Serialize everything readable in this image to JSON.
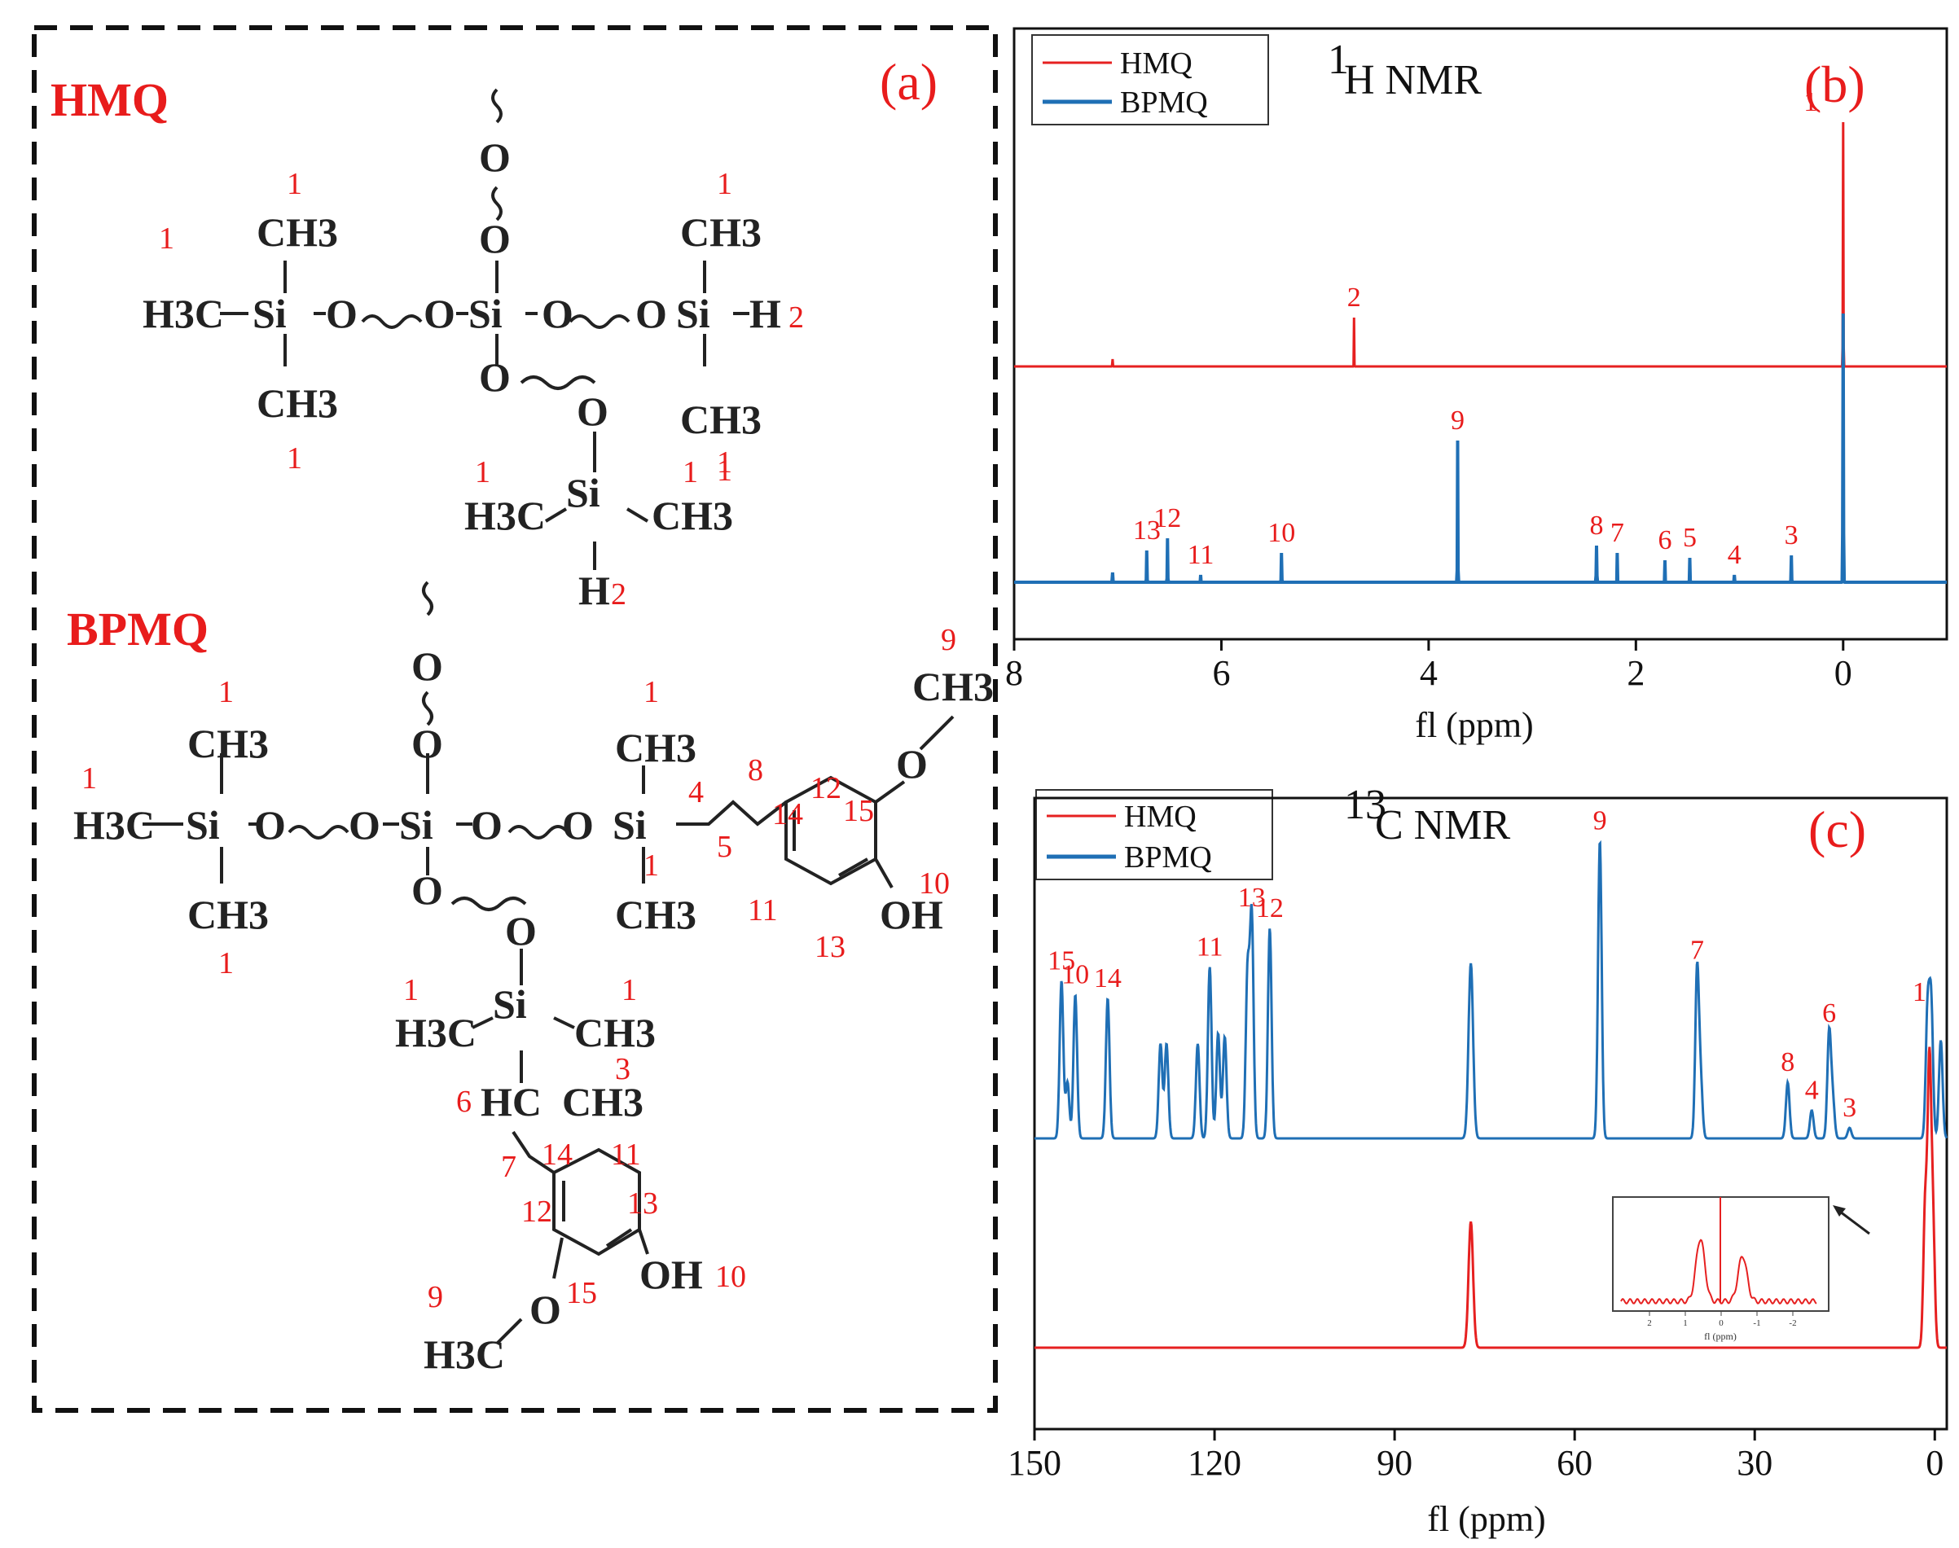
{
  "panel_a": {
    "tag": "(a)",
    "hmq_title": "HMQ",
    "bpmq_title": "BPMQ",
    "hmq_structure": {
      "ch3": "CH3",
      "h3c": "H3C",
      "si": "Si",
      "o": "O",
      "h": "H",
      "labels": [
        "1",
        "1",
        "1",
        "2",
        "1",
        "1",
        "1",
        "1",
        "1",
        "2"
      ]
    },
    "bpmq_structure": {
      "ch3": "CH3",
      "h3c": "H3C",
      "si": "Si",
      "o": "O",
      "oh": "OH",
      "hc": "HC",
      "labels": [
        "1",
        "1",
        "1",
        "1",
        "1",
        "4",
        "8",
        "14",
        "12",
        "15",
        "9",
        "5",
        "11",
        "13",
        "10",
        "1",
        "1",
        "3",
        "6",
        "7",
        "14",
        "11",
        "13",
        "12",
        "10",
        "9",
        "15"
      ]
    }
  },
  "chart_data": [
    {
      "type": "line",
      "panel": "(b)",
      "title": "1H NMR",
      "title_sup": "1",
      "title_main": "H NMR",
      "xlabel": "fl (ppm)",
      "ylabel": "",
      "xlim": [
        8,
        -1
      ],
      "x_reversed": true,
      "xticks": [
        8,
        6,
        4,
        2,
        0
      ],
      "grid": false,
      "legend_position": "top-left",
      "legend": [
        "HMQ",
        "BPMQ"
      ],
      "series": [
        {
          "name": "HMQ",
          "color": "#e62020",
          "baseline": 0.42,
          "peaks": [
            {
              "x": 7.05,
              "h": 0.03,
              "w": 0.025,
              "label": ""
            },
            {
              "x": 4.72,
              "h": 0.2,
              "w": 0.02,
              "label": "2"
            },
            {
              "x": 0.0,
              "h": 1.0,
              "w": 0.025,
              "label": "1"
            }
          ]
        },
        {
          "name": "BPMQ",
          "color": "#1f6fb5",
          "baseline": 0.0,
          "peaks": [
            {
              "x": 7.05,
              "h": 0.04,
              "w": 0.03,
              "label": ""
            },
            {
              "x": 6.72,
              "h": 0.13,
              "w": 0.025,
              "label": "13"
            },
            {
              "x": 6.52,
              "h": 0.18,
              "w": 0.025,
              "label": "12"
            },
            {
              "x": 6.2,
              "h": 0.03,
              "w": 0.02,
              "label": "11"
            },
            {
              "x": 5.42,
              "h": 0.12,
              "w": 0.025,
              "label": "10"
            },
            {
              "x": 3.72,
              "h": 0.58,
              "w": 0.025,
              "label": "9"
            },
            {
              "x": 2.38,
              "h": 0.15,
              "w": 0.03,
              "label": "8"
            },
            {
              "x": 2.18,
              "h": 0.12,
              "w": 0.015,
              "label": "7"
            },
            {
              "x": 1.72,
              "h": 0.09,
              "w": 0.02,
              "label": "6"
            },
            {
              "x": 1.48,
              "h": 0.1,
              "w": 0.025,
              "label": "5"
            },
            {
              "x": 1.05,
              "h": 0.03,
              "w": 0.03,
              "label": "4"
            },
            {
              "x": 0.5,
              "h": 0.11,
              "w": 0.025,
              "label": "3"
            },
            {
              "x": 0.0,
              "h": 1.1,
              "w": 0.03,
              "label": ""
            }
          ]
        }
      ]
    },
    {
      "type": "line",
      "panel": "(c)",
      "title": "13C NMR",
      "title_sup": "13",
      "title_main": "C NMR",
      "xlabel": "fl (ppm)",
      "ylabel": "",
      "xlim": [
        150,
        -2
      ],
      "x_reversed": true,
      "xticks": [
        150,
        120,
        90,
        60,
        30,
        0
      ],
      "grid": false,
      "legend_position": "top-left",
      "legend": [
        "HMQ",
        "BPMQ"
      ],
      "series": [
        {
          "name": "BPMQ",
          "color": "#1f6fb5",
          "baseline": 0.4,
          "peaks": [
            {
              "x": 145.5,
              "h": 0.45,
              "w": 0.2,
              "label": "15"
            },
            {
              "x": 144.5,
              "h": 0.16,
              "w": 0.2,
              "label": ""
            },
            {
              "x": 143.2,
              "h": 0.41,
              "w": 0.2,
              "label": "10"
            },
            {
              "x": 137.8,
              "h": 0.4,
              "w": 0.2,
              "label": "14"
            },
            {
              "x": 129.0,
              "h": 0.27,
              "w": 0.2,
              "label": ""
            },
            {
              "x": 128.0,
              "h": 0.27,
              "w": 0.2,
              "label": ""
            },
            {
              "x": 122.8,
              "h": 0.27,
              "w": 0.2,
              "label": ""
            },
            {
              "x": 120.8,
              "h": 0.49,
              "w": 0.2,
              "label": "11"
            },
            {
              "x": 119.4,
              "h": 0.3,
              "w": 0.2,
              "label": ""
            },
            {
              "x": 118.3,
              "h": 0.29,
              "w": 0.2,
              "label": ""
            },
            {
              "x": 114.5,
              "h": 0.47,
              "w": 0.2,
              "label": ""
            },
            {
              "x": 113.8,
              "h": 0.63,
              "w": 0.2,
              "label": "13"
            },
            {
              "x": 110.8,
              "h": 0.6,
              "w": 0.2,
              "label": "12"
            },
            {
              "x": 77.3,
              "h": 0.5,
              "w": 0.25,
              "label": ""
            },
            {
              "x": 55.8,
              "h": 0.85,
              "w": 0.2,
              "label": "9"
            },
            {
              "x": 39.6,
              "h": 0.48,
              "w": 0.2,
              "label": "7"
            },
            {
              "x": 39.0,
              "h": 0.16,
              "w": 0.2,
              "label": ""
            },
            {
              "x": 24.5,
              "h": 0.16,
              "w": 0.2,
              "label": "8"
            },
            {
              "x": 20.5,
              "h": 0.08,
              "w": 0.2,
              "label": "4"
            },
            {
              "x": 17.6,
              "h": 0.3,
              "w": 0.2,
              "label": "6"
            },
            {
              "x": 17.0,
              "h": 0.11,
              "w": 0.2,
              "label": ""
            },
            {
              "x": 14.2,
              "h": 0.03,
              "w": 0.2,
              "label": "3"
            },
            {
              "x": 1.2,
              "h": 0.36,
              "w": 0.2,
              "label": "1"
            },
            {
              "x": 0.6,
              "h": 0.38,
              "w": 0.2,
              "label": ""
            },
            {
              "x": -1.0,
              "h": 0.28,
              "w": 0.2,
              "label": ""
            }
          ]
        },
        {
          "name": "HMQ",
          "color": "#e62020",
          "baseline": 0.0,
          "peaks": [
            {
              "x": 77.3,
              "h": 0.36,
              "w": 0.25,
              "label": ""
            },
            {
              "x": 1.6,
              "h": 0.4,
              "w": 0.2,
              "label": ""
            },
            {
              "x": 0.9,
              "h": 0.78,
              "w": 0.2,
              "label": ""
            },
            {
              "x": 0.3,
              "h": 0.35,
              "w": 0.2,
              "label": ""
            }
          ]
        }
      ],
      "inset": {
        "xticks": [
          "2",
          "1",
          "0",
          "-1",
          "-2"
        ],
        "xlabel": "fl (ppm)"
      }
    }
  ]
}
